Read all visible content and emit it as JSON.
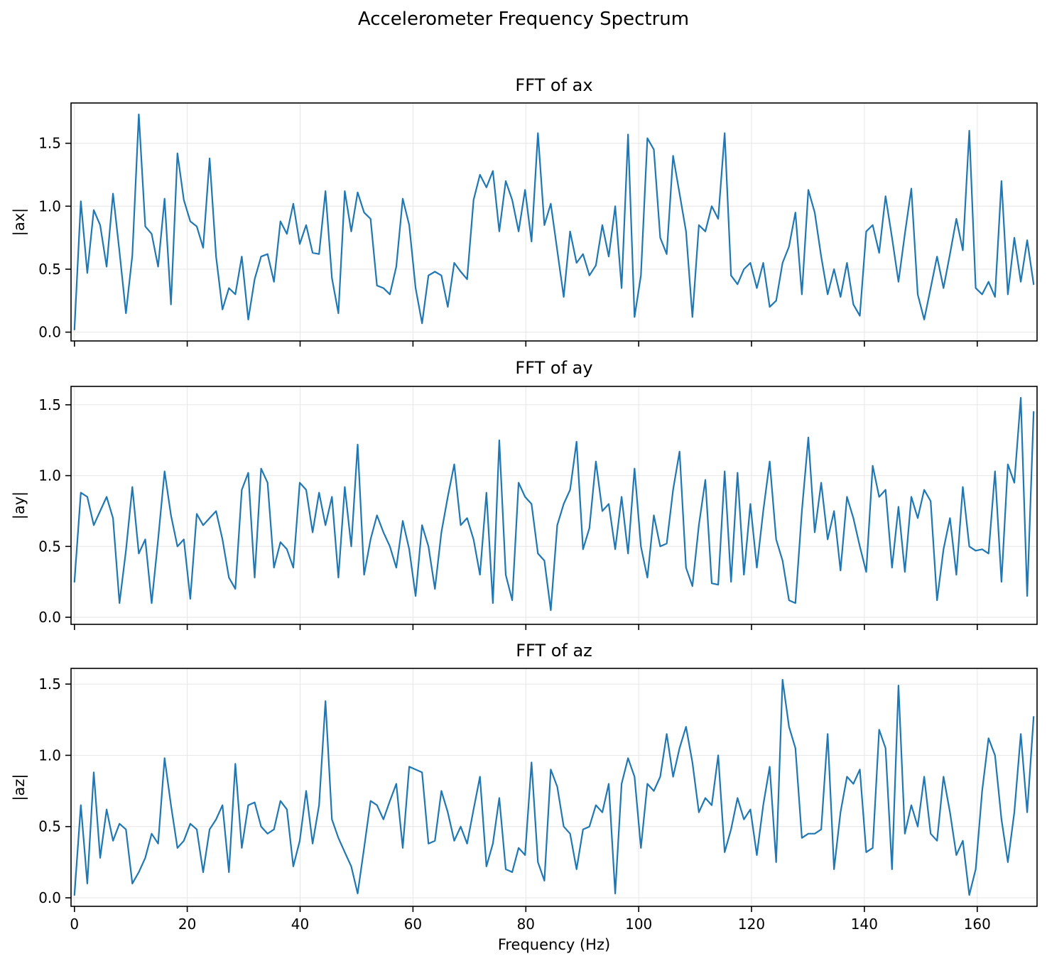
{
  "figure": {
    "title": "Accelerometer Frequency Spectrum",
    "xlabel": "Frequency (Hz)",
    "line_color": "#1f77b4",
    "grid_color": "#e6e6e6",
    "spine_color": "#000000",
    "background": "#ffffff"
  },
  "chart_data": [
    {
      "type": "line",
      "title": "FFT of ax",
      "ylabel": "|ax|",
      "xlabel": "Frequency (Hz)",
      "legend": "none",
      "grid": true,
      "x_start": 0,
      "x_step": 1.1409,
      "xlim": [
        -0.6,
        170.6
      ],
      "ylim": [
        -0.07,
        1.82
      ],
      "x_ticks": [
        0,
        20,
        40,
        60,
        80,
        100,
        120,
        140,
        160
      ],
      "y_ticks": [
        0.0,
        0.5,
        1.0,
        1.5
      ],
      "values": [
        0.02,
        1.04,
        0.47,
        0.97,
        0.85,
        0.52,
        1.1,
        0.64,
        0.15,
        0.61,
        1.73,
        0.84,
        0.78,
        0.52,
        1.06,
        0.22,
        1.42,
        1.05,
        0.88,
        0.84,
        0.67,
        1.38,
        0.6,
        0.18,
        0.35,
        0.3,
        0.6,
        0.1,
        0.42,
        0.6,
        0.62,
        0.4,
        0.88,
        0.78,
        1.02,
        0.7,
        0.85,
        0.63,
        0.62,
        1.12,
        0.43,
        0.15,
        1.12,
        0.8,
        1.11,
        0.95,
        0.9,
        0.37,
        0.35,
        0.3,
        0.52,
        1.06,
        0.85,
        0.35,
        0.07,
        0.45,
        0.48,
        0.45,
        0.2,
        0.55,
        0.48,
        0.42,
        1.05,
        1.25,
        1.15,
        1.28,
        0.8,
        1.2,
        1.05,
        0.8,
        1.13,
        0.72,
        1.58,
        0.85,
        1.02,
        0.65,
        0.28,
        0.8,
        0.55,
        0.62,
        0.45,
        0.53,
        0.85,
        0.6,
        1.0,
        0.35,
        1.57,
        0.12,
        0.45,
        1.54,
        1.45,
        0.75,
        0.62,
        1.4,
        1.1,
        0.8,
        0.12,
        0.85,
        0.8,
        1.0,
        0.9,
        1.58,
        0.45,
        0.38,
        0.5,
        0.55,
        0.35,
        0.55,
        0.2,
        0.25,
        0.55,
        0.68,
        0.95,
        0.3,
        1.13,
        0.95,
        0.6,
        0.3,
        0.5,
        0.28,
        0.55,
        0.22,
        0.13,
        0.8,
        0.85,
        0.63,
        1.08,
        0.75,
        0.4,
        0.78,
        1.14,
        0.3,
        0.1,
        0.35,
        0.6,
        0.35,
        0.62,
        0.9,
        0.65,
        1.6,
        0.35,
        0.3,
        0.4,
        0.28,
        1.2,
        0.3,
        0.75,
        0.4,
        0.73,
        0.38
      ]
    },
    {
      "type": "line",
      "title": "FFT of ay",
      "ylabel": "|ay|",
      "xlabel": "Frequency (Hz)",
      "legend": "none",
      "grid": true,
      "x_start": 0,
      "x_step": 1.1409,
      "xlim": [
        -0.6,
        170.6
      ],
      "ylim": [
        -0.05,
        1.63
      ],
      "x_ticks": [
        0,
        20,
        40,
        60,
        80,
        100,
        120,
        140,
        160
      ],
      "y_ticks": [
        0.0,
        0.5,
        1.0,
        1.5
      ],
      "values": [
        0.25,
        0.88,
        0.85,
        0.65,
        0.75,
        0.85,
        0.7,
        0.1,
        0.47,
        0.92,
        0.45,
        0.55,
        0.1,
        0.55,
        1.03,
        0.72,
        0.5,
        0.55,
        0.13,
        0.73,
        0.65,
        0.7,
        0.75,
        0.55,
        0.28,
        0.2,
        0.9,
        1.02,
        0.28,
        1.05,
        0.95,
        0.35,
        0.53,
        0.48,
        0.35,
        0.95,
        0.9,
        0.6,
        0.88,
        0.65,
        0.85,
        0.28,
        0.92,
        0.5,
        1.22,
        0.3,
        0.55,
        0.72,
        0.6,
        0.5,
        0.35,
        0.68,
        0.48,
        0.15,
        0.65,
        0.5,
        0.2,
        0.6,
        0.85,
        1.08,
        0.65,
        0.7,
        0.55,
        0.3,
        0.88,
        0.1,
        1.25,
        0.3,
        0.12,
        0.95,
        0.85,
        0.8,
        0.45,
        0.4,
        0.05,
        0.65,
        0.8,
        0.9,
        1.24,
        0.48,
        0.63,
        1.1,
        0.75,
        0.8,
        0.48,
        0.85,
        0.45,
        1.05,
        0.5,
        0.28,
        0.72,
        0.5,
        0.52,
        0.9,
        1.17,
        0.35,
        0.22,
        0.65,
        0.97,
        0.24,
        0.23,
        1.03,
        0.25,
        1.02,
        0.3,
        0.8,
        0.35,
        0.75,
        1.1,
        0.55,
        0.4,
        0.12,
        0.1,
        0.75,
        1.27,
        0.6,
        0.95,
        0.55,
        0.75,
        0.33,
        0.85,
        0.7,
        0.5,
        0.32,
        1.07,
        0.85,
        0.9,
        0.35,
        0.78,
        0.32,
        0.85,
        0.7,
        0.9,
        0.82,
        0.12,
        0.48,
        0.7,
        0.3,
        0.92,
        0.5,
        0.47,
        0.48,
        0.45,
        1.03,
        0.25,
        1.08,
        0.95,
        1.55,
        0.15,
        1.45
      ]
    },
    {
      "type": "line",
      "title": "FFT of az",
      "ylabel": "|az|",
      "xlabel": "Frequency (Hz)",
      "legend": "none",
      "grid": true,
      "x_start": 0,
      "x_step": 1.1409,
      "xlim": [
        -0.6,
        170.6
      ],
      "ylim": [
        -0.06,
        1.61
      ],
      "x_ticks": [
        0,
        20,
        40,
        60,
        80,
        100,
        120,
        140,
        160
      ],
      "y_ticks": [
        0.0,
        0.5,
        1.0,
        1.5
      ],
      "values": [
        0.02,
        0.65,
        0.1,
        0.88,
        0.28,
        0.62,
        0.4,
        0.52,
        0.48,
        0.1,
        0.18,
        0.28,
        0.45,
        0.38,
        0.98,
        0.65,
        0.35,
        0.4,
        0.52,
        0.48,
        0.18,
        0.48,
        0.55,
        0.65,
        0.18,
        0.94,
        0.35,
        0.65,
        0.67,
        0.5,
        0.45,
        0.48,
        0.68,
        0.62,
        0.22,
        0.4,
        0.75,
        0.38,
        0.65,
        1.38,
        0.55,
        0.42,
        0.32,
        0.22,
        0.03,
        0.35,
        0.68,
        0.65,
        0.55,
        0.68,
        0.8,
        0.35,
        0.92,
        0.9,
        0.88,
        0.38,
        0.4,
        0.75,
        0.6,
        0.4,
        0.5,
        0.38,
        0.62,
        0.85,
        0.22,
        0.38,
        0.7,
        0.2,
        0.18,
        0.35,
        0.3,
        0.95,
        0.25,
        0.12,
        0.9,
        0.78,
        0.5,
        0.45,
        0.2,
        0.48,
        0.5,
        0.65,
        0.6,
        0.8,
        0.03,
        0.8,
        0.98,
        0.85,
        0.35,
        0.8,
        0.75,
        0.85,
        1.15,
        0.85,
        1.05,
        1.2,
        0.95,
        0.6,
        0.7,
        0.65,
        1.0,
        0.32,
        0.48,
        0.7,
        0.55,
        0.62,
        0.3,
        0.65,
        0.92,
        0.25,
        1.53,
        1.2,
        1.05,
        0.42,
        0.45,
        0.45,
        0.48,
        1.15,
        0.2,
        0.6,
        0.85,
        0.8,
        0.9,
        0.32,
        0.35,
        1.18,
        1.05,
        0.2,
        1.49,
        0.45,
        0.65,
        0.5,
        0.85,
        0.45,
        0.4,
        0.85,
        0.6,
        0.3,
        0.4,
        0.02,
        0.2,
        0.75,
        1.12,
        1.0,
        0.55,
        0.25,
        0.6,
        1.15,
        0.6,
        1.27
      ]
    }
  ]
}
